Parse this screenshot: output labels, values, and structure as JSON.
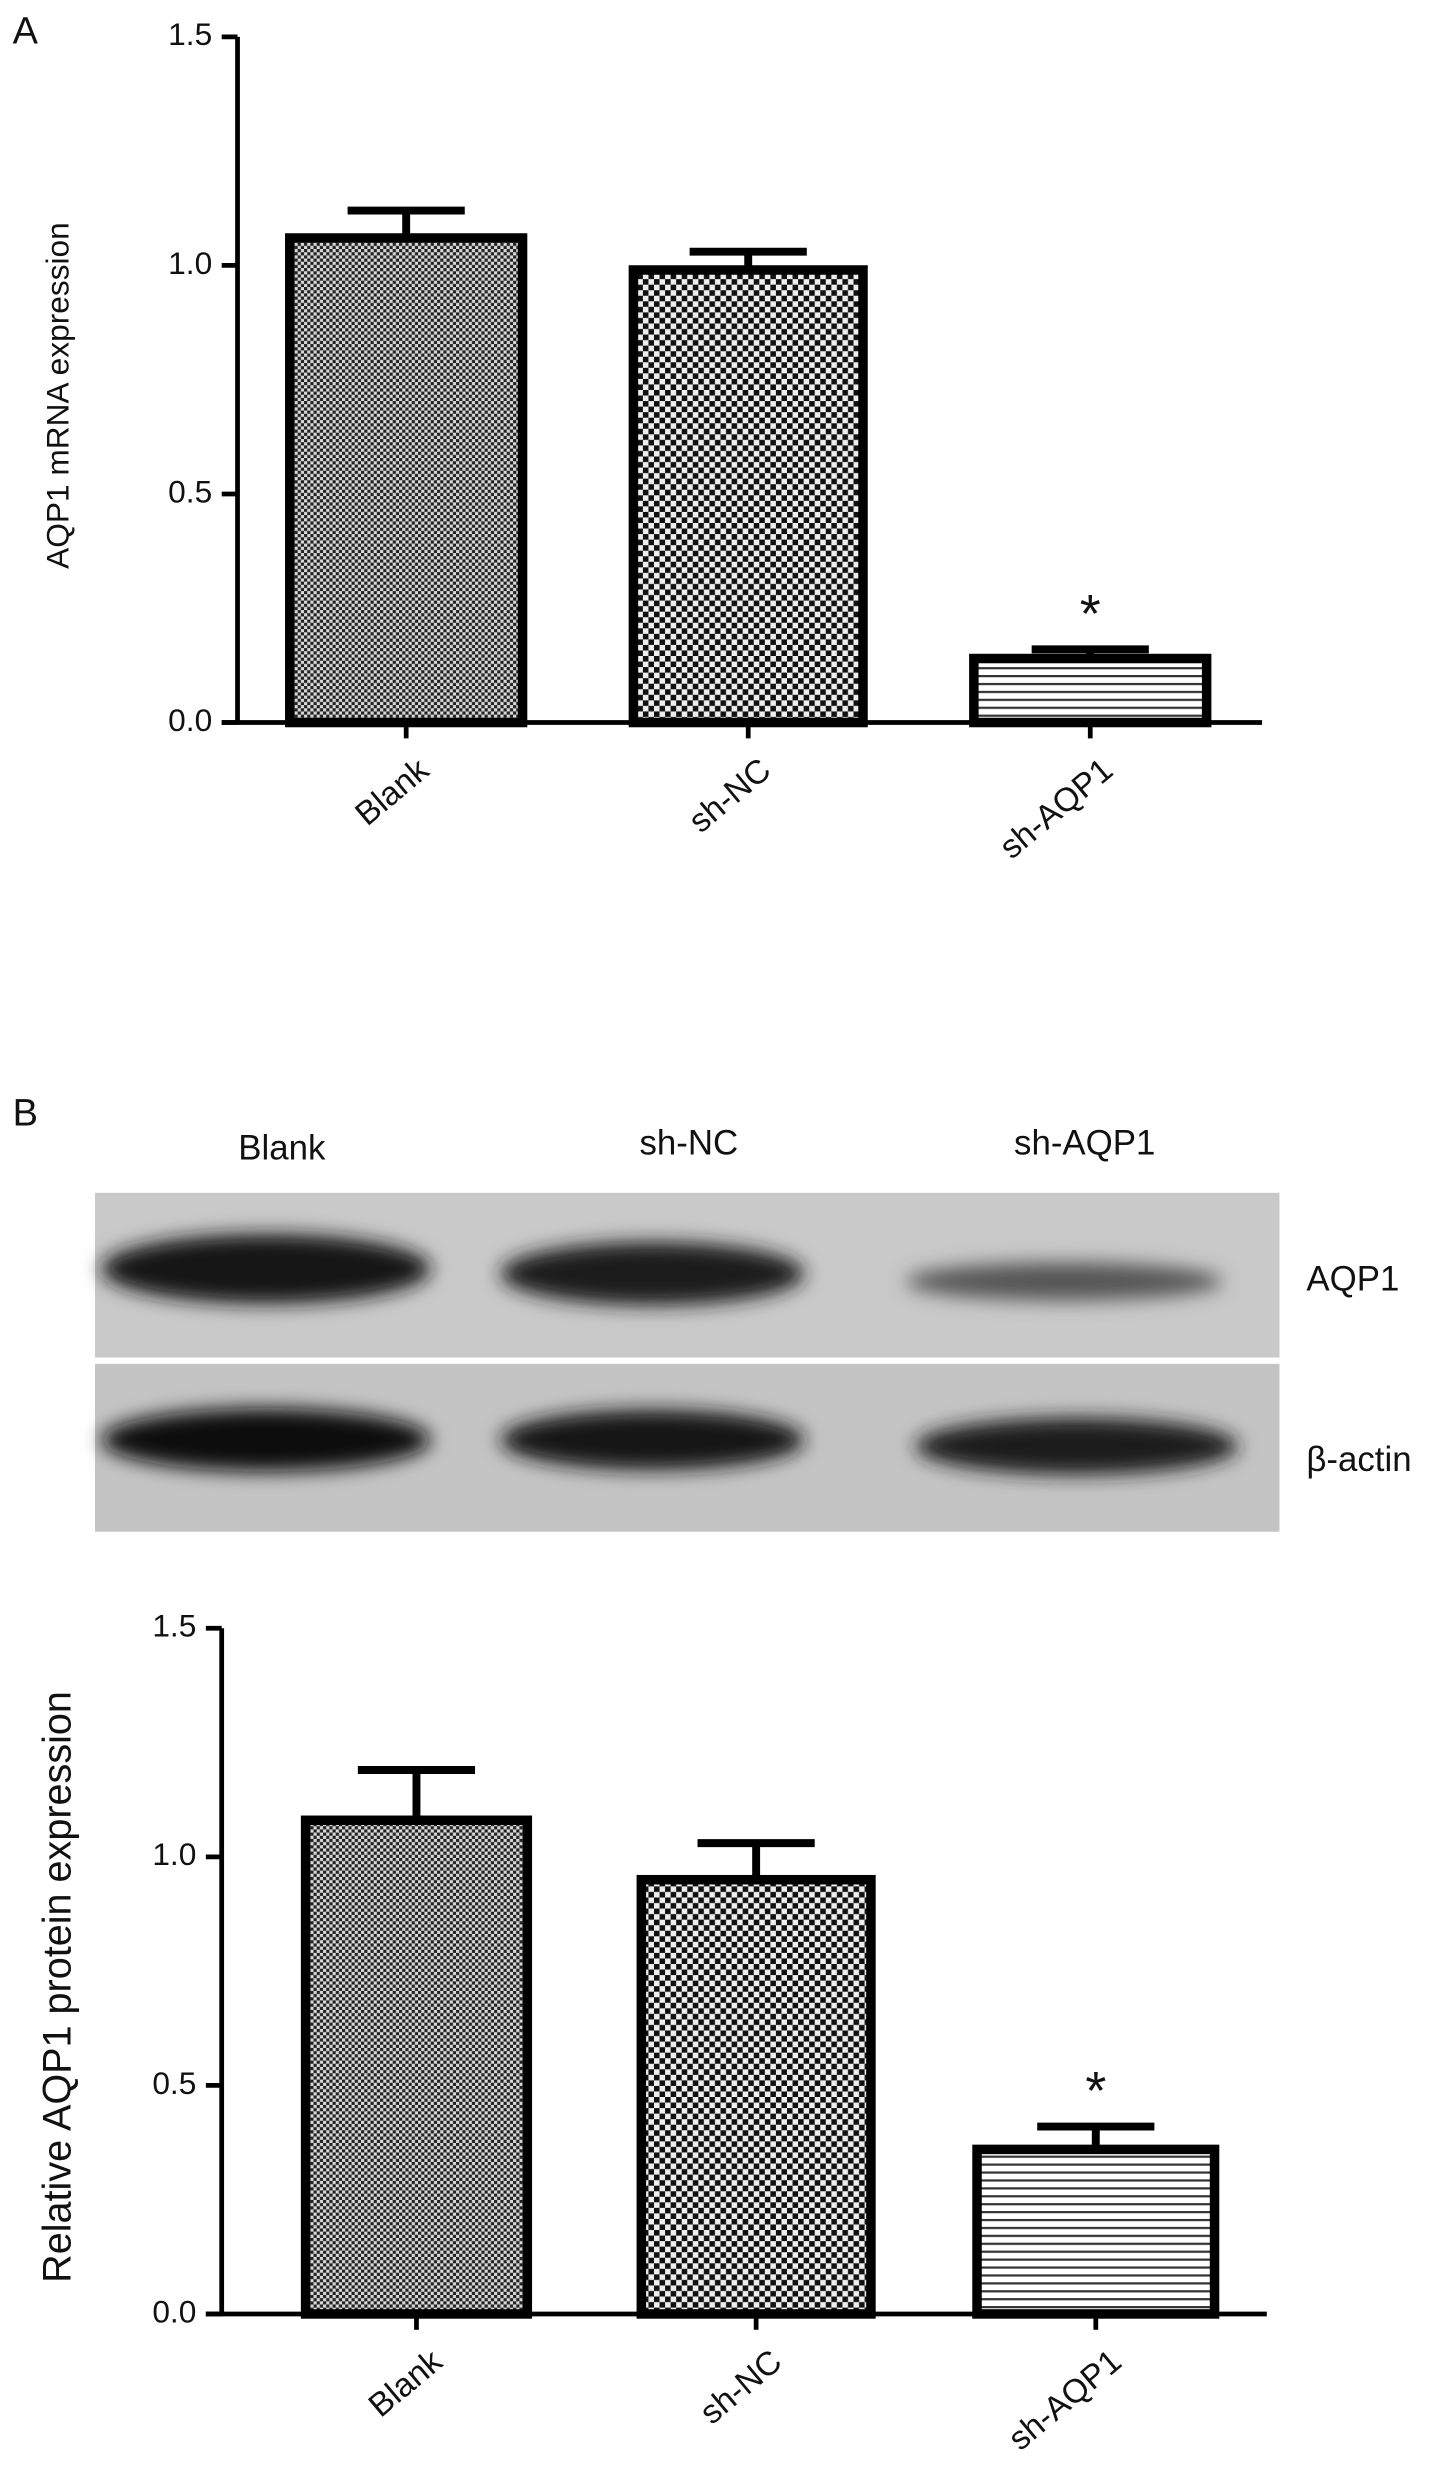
{
  "panel_labels": [
    "A",
    "B"
  ],
  "blot": {
    "lanes": [
      "Blank",
      "sh-NC",
      "sh-AQP1"
    ],
    "rows": [
      "AQP1",
      "β-actin"
    ]
  },
  "chart_data": [
    {
      "type": "bar",
      "y_label": "AQP1 mRNA expression",
      "categories": [
        "Blank",
        "sh-NC",
        "sh-AQP1"
      ],
      "values": [
        1.06,
        0.99,
        0.14
      ],
      "errors": [
        0.06,
        0.04,
        0.02
      ],
      "color": "#000000",
      "annotations": [
        {
          "text": "*",
          "category": "sh-AQP1"
        }
      ],
      "ylim": [
        0,
        1.5
      ],
      "yticks": [
        {
          "value": 0,
          "label": "0.0"
        },
        {
          "value": 0.5,
          "label": "0.5"
        },
        {
          "value": 1,
          "label": "1.0"
        },
        {
          "value": 1.5,
          "label": "1.5"
        }
      ],
      "grid": false
    },
    {
      "type": "bar",
      "y_label": "Relative AQP1 protein expression",
      "categories": [
        "Blank",
        "sh-NC",
        "sh-AQP1"
      ],
      "values": [
        1.08,
        0.95,
        0.36
      ],
      "errors": [
        0.11,
        0.08,
        0.05
      ],
      "color": "#000000",
      "annotations": [
        {
          "text": "*",
          "category": "sh-AQP1"
        }
      ],
      "ylim": [
        0,
        1.5
      ],
      "yticks": [
        {
          "value": 0,
          "label": "0.0"
        },
        {
          "value": 0.5,
          "label": "0.5"
        },
        {
          "value": 1,
          "label": "1.0"
        },
        {
          "value": 1.5,
          "label": "1.5"
        }
      ],
      "grid": false
    }
  ]
}
